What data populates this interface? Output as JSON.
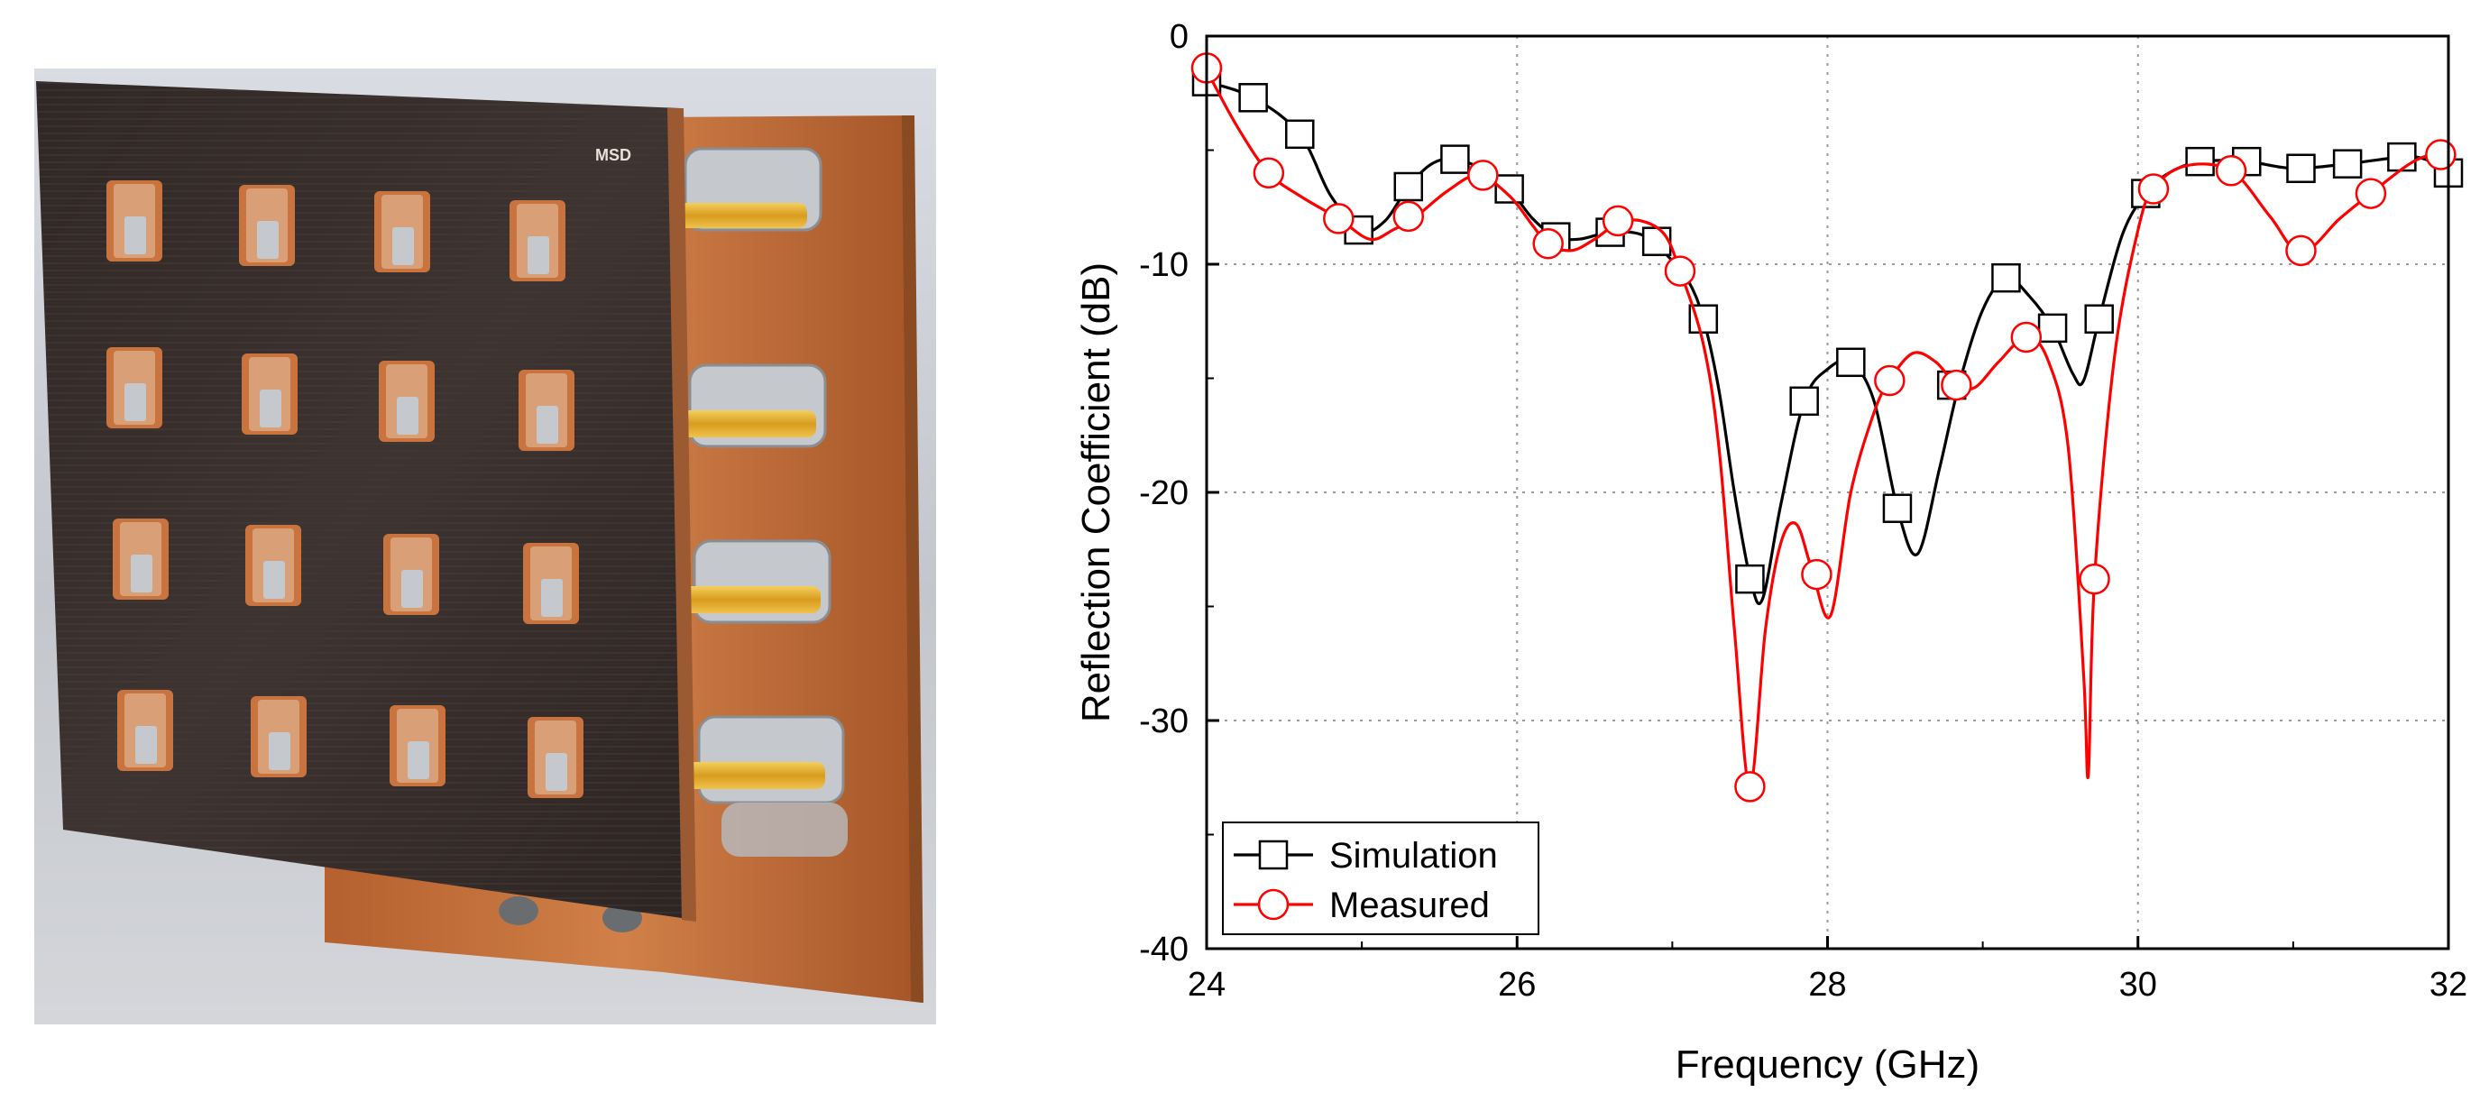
{
  "photo": {
    "marking": "MSD",
    "colors": {
      "background": "#c9ccd2",
      "board_dark": "#3a302d",
      "copper": "#c9743f",
      "gold": "#e3aa2a",
      "silver": "#c5c8cc"
    }
  },
  "chart_data": {
    "type": "line",
    "title": "",
    "xlabel": "Frequency (GHz)",
    "ylabel": "Reflection Coefficient (dB)",
    "xlim": [
      24,
      32
    ],
    "ylim": [
      -40,
      0
    ],
    "xticks": [
      24,
      26,
      28,
      30,
      32
    ],
    "yticks": [
      0,
      -10,
      -20,
      -30,
      -40
    ],
    "grid": true,
    "grid_style": "dotted",
    "legend_position": "bottom-left",
    "series": [
      {
        "name": "Simulation",
        "color": "#000000",
        "marker": "square",
        "curve": [
          [
            24.0,
            -2.0
          ],
          [
            24.3,
            -2.7
          ],
          [
            24.6,
            -4.3
          ],
          [
            24.8,
            -7.0
          ],
          [
            25.0,
            -8.5
          ],
          [
            25.15,
            -8.1
          ],
          [
            25.3,
            -6.6
          ],
          [
            25.45,
            -5.6
          ],
          [
            25.6,
            -5.4
          ],
          [
            25.8,
            -5.9
          ],
          [
            25.95,
            -6.7
          ],
          [
            26.1,
            -8.0
          ],
          [
            26.25,
            -8.8
          ],
          [
            26.4,
            -8.9
          ],
          [
            26.6,
            -8.6
          ],
          [
            26.8,
            -8.7
          ],
          [
            26.95,
            -9.5
          ],
          [
            27.1,
            -10.7
          ],
          [
            27.2,
            -12.4
          ],
          [
            27.3,
            -15.5
          ],
          [
            27.4,
            -20.0
          ],
          [
            27.5,
            -23.7
          ],
          [
            27.58,
            -24.7
          ],
          [
            27.7,
            -20.5
          ],
          [
            27.85,
            -16.0
          ],
          [
            28.0,
            -14.6
          ],
          [
            28.15,
            -14.3
          ],
          [
            28.3,
            -16.0
          ],
          [
            28.45,
            -20.7
          ],
          [
            28.58,
            -22.7
          ],
          [
            28.72,
            -19.0
          ],
          [
            28.85,
            -15.2
          ],
          [
            29.0,
            -12.0
          ],
          [
            29.15,
            -10.6
          ],
          [
            29.3,
            -11.4
          ],
          [
            29.45,
            -12.8
          ],
          [
            29.58,
            -14.8
          ],
          [
            29.65,
            -15.1
          ],
          [
            29.75,
            -12.4
          ],
          [
            29.9,
            -8.7
          ],
          [
            30.05,
            -6.9
          ],
          [
            30.2,
            -6.0
          ],
          [
            30.4,
            -5.5
          ],
          [
            30.7,
            -5.5
          ],
          [
            31.0,
            -5.8
          ],
          [
            31.35,
            -5.6
          ],
          [
            31.7,
            -5.3
          ],
          [
            31.85,
            -5.4
          ],
          [
            32.0,
            -6.0
          ]
        ],
        "markers": [
          [
            24.0,
            -2.0
          ],
          [
            24.3,
            -2.7
          ],
          [
            24.6,
            -4.3
          ],
          [
            24.98,
            -8.5
          ],
          [
            25.3,
            -6.6
          ],
          [
            25.6,
            -5.4
          ],
          [
            25.95,
            -6.7
          ],
          [
            26.25,
            -8.8
          ],
          [
            26.6,
            -8.6
          ],
          [
            26.9,
            -9.0
          ],
          [
            27.2,
            -12.4
          ],
          [
            27.5,
            -23.8
          ],
          [
            27.85,
            -16.0
          ],
          [
            28.15,
            -14.3
          ],
          [
            28.45,
            -20.7
          ],
          [
            28.8,
            -15.3
          ],
          [
            29.15,
            -10.6
          ],
          [
            29.45,
            -12.8
          ],
          [
            29.75,
            -12.4
          ],
          [
            30.05,
            -6.9
          ],
          [
            30.4,
            -5.5
          ],
          [
            30.7,
            -5.5
          ],
          [
            31.05,
            -5.8
          ],
          [
            31.35,
            -5.6
          ],
          [
            31.7,
            -5.3
          ],
          [
            32.0,
            -6.0
          ]
        ]
      },
      {
        "name": "Measured",
        "color": "#ff0000",
        "marker": "circle",
        "curve": [
          [
            24.0,
            -1.5
          ],
          [
            24.2,
            -4.0
          ],
          [
            24.4,
            -6.0
          ],
          [
            24.6,
            -7.0
          ],
          [
            24.85,
            -8.0
          ],
          [
            25.05,
            -8.9
          ],
          [
            25.2,
            -8.5
          ],
          [
            25.35,
            -7.9
          ],
          [
            25.55,
            -6.8
          ],
          [
            25.75,
            -6.1
          ],
          [
            25.95,
            -7.0
          ],
          [
            26.1,
            -8.3
          ],
          [
            26.2,
            -9.1
          ],
          [
            26.35,
            -9.4
          ],
          [
            26.5,
            -8.9
          ],
          [
            26.65,
            -8.2
          ],
          [
            26.8,
            -8.1
          ],
          [
            26.95,
            -8.7
          ],
          [
            27.05,
            -10.3
          ],
          [
            27.2,
            -13.5
          ],
          [
            27.3,
            -18.0
          ],
          [
            27.4,
            -26.0
          ],
          [
            27.5,
            -32.9
          ],
          [
            27.6,
            -26.0
          ],
          [
            27.7,
            -22.2
          ],
          [
            27.8,
            -21.4
          ],
          [
            27.9,
            -23.4
          ],
          [
            28.02,
            -25.4
          ],
          [
            28.15,
            -20.0
          ],
          [
            28.3,
            -16.5
          ],
          [
            28.4,
            -15.1
          ],
          [
            28.55,
            -13.9
          ],
          [
            28.7,
            -14.3
          ],
          [
            28.83,
            -15.3
          ],
          [
            28.95,
            -15.4
          ],
          [
            29.1,
            -14.3
          ],
          [
            29.28,
            -13.2
          ],
          [
            29.42,
            -14.2
          ],
          [
            29.55,
            -18.0
          ],
          [
            29.65,
            -28.0
          ],
          [
            29.68,
            -32.4
          ],
          [
            29.72,
            -23.8
          ],
          [
            29.85,
            -14.0
          ],
          [
            30.0,
            -8.5
          ],
          [
            30.1,
            -6.7
          ],
          [
            30.3,
            -5.7
          ],
          [
            30.6,
            -5.9
          ],
          [
            30.85,
            -7.9
          ],
          [
            31.05,
            -9.5
          ],
          [
            31.3,
            -8.0
          ],
          [
            31.5,
            -6.9
          ],
          [
            31.75,
            -5.6
          ],
          [
            31.9,
            -5.2
          ],
          [
            32.0,
            -5.3
          ]
        ],
        "markers": [
          [
            24.0,
            -1.4
          ],
          [
            24.4,
            -6.0
          ],
          [
            24.85,
            -8.0
          ],
          [
            25.3,
            -7.9
          ],
          [
            25.78,
            -6.1
          ],
          [
            26.2,
            -9.1
          ],
          [
            26.65,
            -8.1
          ],
          [
            27.05,
            -10.3
          ],
          [
            27.5,
            -32.9
          ],
          [
            27.93,
            -23.6
          ],
          [
            28.4,
            -15.1
          ],
          [
            28.83,
            -15.3
          ],
          [
            29.28,
            -13.2
          ],
          [
            29.72,
            -23.8
          ],
          [
            30.1,
            -6.7
          ],
          [
            30.6,
            -5.9
          ],
          [
            31.05,
            -9.4
          ],
          [
            31.5,
            -6.9
          ],
          [
            31.95,
            -5.2
          ]
        ]
      }
    ]
  }
}
